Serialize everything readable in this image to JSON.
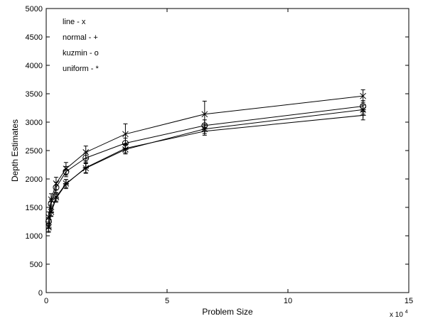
{
  "chart_data": {
    "type": "line",
    "title": "",
    "xlabel": "Problem Size",
    "ylabel": "Depth Estimates",
    "x_multiplier": {
      "base": "x 10",
      "exponent": "4"
    },
    "xlim": [
      0,
      15
    ],
    "ylim": [
      0,
      5000
    ],
    "x_ticks": [
      0,
      5,
      10,
      15
    ],
    "x_tick_labels": [
      "0",
      "5",
      "10",
      "15"
    ],
    "y_ticks": [
      0,
      500,
      1000,
      1500,
      2000,
      2500,
      3000,
      3500,
      4000,
      4500,
      5000
    ],
    "y_tick_labels": [
      "0",
      "500",
      "1000",
      "1500",
      "2000",
      "2500",
      "3000",
      "3500",
      "4000",
      "4500",
      "5000"
    ],
    "grid": false,
    "legend_placement": "top-left",
    "legend": [
      "line - x",
      "normal - +",
      "kuzmin - o",
      "uniform - *"
    ],
    "x": [
      0.1024,
      0.2048,
      0.4096,
      0.8192,
      1.6384,
      3.2768,
      6.5536,
      13.1072
    ],
    "series": [
      {
        "name": "line - x",
        "marker": "x",
        "values": [
          1330,
          1640,
          1920,
          2180,
          2470,
          2790,
          3140,
          3460
        ],
        "errors": [
          90,
          100,
          110,
          110,
          110,
          180,
          230,
          110
        ]
      },
      {
        "name": "normal - +",
        "marker": "+",
        "values": [
          1130,
          1410,
          1660,
          1910,
          2200,
          2540,
          2840,
          3120
        ],
        "errors": [
          70,
          70,
          70,
          80,
          100,
          80,
          70,
          80
        ]
      },
      {
        "name": "kuzmin - o",
        "marker": "o",
        "values": [
          1250,
          1560,
          1850,
          2130,
          2370,
          2630,
          2940,
          3280
        ],
        "errors": [
          70,
          80,
          90,
          90,
          90,
          90,
          100,
          100
        ]
      },
      {
        "name": "uniform - *",
        "marker": "*",
        "values": [
          1150,
          1420,
          1680,
          1920,
          2190,
          2520,
          2880,
          3220
        ],
        "errors": [
          70,
          70,
          70,
          70,
          80,
          80,
          80,
          80
        ]
      }
    ]
  }
}
